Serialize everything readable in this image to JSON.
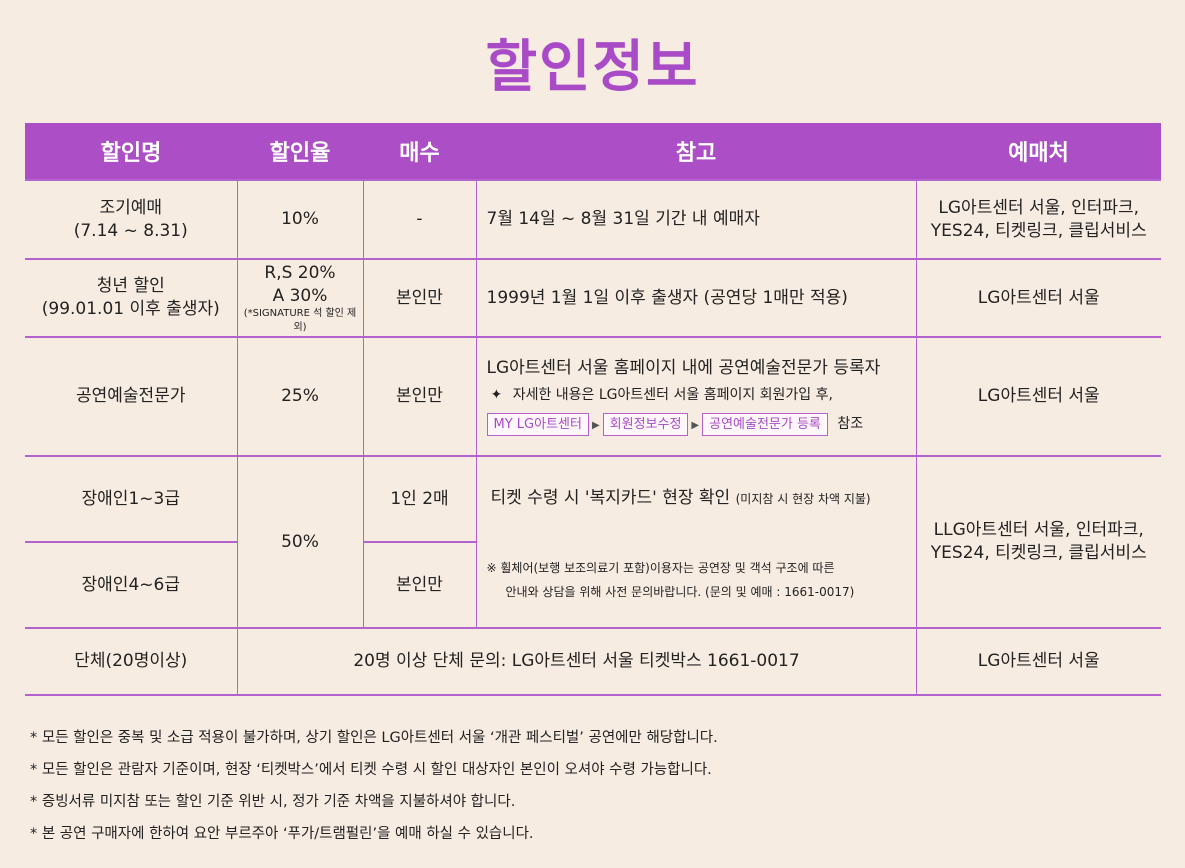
{
  "title": "할인정보",
  "headers": [
    "할인명",
    "할인율",
    "매수",
    "참고",
    "예매처"
  ],
  "rows": {
    "early": {
      "name": [
        "조기예매",
        "(7.14 ~ 8.31)"
      ],
      "rate": "10%",
      "count": "-",
      "note": "7월 14일 ~ 8월 31일  기간 내 예매자",
      "where": [
        "LG아트센터 서울, 인터파크,",
        "YES24, 티켓링크, 클립서비스"
      ]
    },
    "youth": {
      "name": [
        "청년 할인",
        "(99.01.01 이후 출생자)"
      ],
      "rate": [
        "R,S 20%",
        "A 30%"
      ],
      "rate_note": "(*SIGNATURE 석 할인 제외)",
      "count": "본인만",
      "note": "1999년 1월 1일 이후 출생자 (공연당 1매만 적용)",
      "where": "LG아트센터 서울"
    },
    "pro": {
      "name": "공연예술전문가",
      "rate": "25%",
      "count": "본인만",
      "note": "LG아트센터 서울 홈페이지 내에 공연예술전문가 등록자",
      "detail_icon": "✦",
      "detail": "자세한 내용은 LG아트센터 서울 홈페이지  회원가입 후,",
      "steps": [
        "MY LG아트센터",
        "회원정보수정",
        "공연예술전문가 등록"
      ],
      "steps_suffix": "참조",
      "where": "LG아트센터 서울"
    },
    "disabled": {
      "name1": "장애인1~3급",
      "name2": "장애인4~6급",
      "rate": "50%",
      "count1": "1인 2매",
      "count2": "본인만",
      "note1": "티켓 수령 시 '복지카드' 현장 확인",
      "note1_small": "(미지참 시 현장 차액 지불)",
      "note2": [
        "※ 휠체어(보행 보조의료기 포함)이용자는 공연장 및 객석 구조에 따른",
        "안내와 상담을 위해 사전 문의바랍니다. (문의 및 예매 : 1661-0017)"
      ],
      "where": [
        "LLG아트센터 서울, 인터파크,",
        "YES24, 티켓링크, 클립서비스"
      ]
    },
    "group": {
      "name": "단체(20명이상)",
      "note": "20명 이상 단체 문의: LG아트센터 서울 티켓박스 1661-0017",
      "where": "LG아트센터 서울"
    }
  },
  "footnotes": [
    "* 모든 할인은 중복 및 소급 적용이 불가하며,  상기 할인은 LG아트센터 서울 ‘개관 페스티벌’ 공연에만 해당합니다.",
    "* 모든 할인은 관람자 기준이며, 현장 ‘티켓박스’에서 티켓 수령 시 할인 대상자인 본인이 오셔야 수령 가능합니다.",
    "* 증빙서류 미지참 또는 할인 기준 위반 시, 정가 기준 차액을 지불하셔야 합니다.",
    "* 본 공연 구매자에 한하여  요안 부르주아 ‘푸가/트램펄린’을 예매 하실 수 있습니다."
  ],
  "colors": {
    "accent": "#ac4fc7",
    "background": "#f7ece1"
  }
}
